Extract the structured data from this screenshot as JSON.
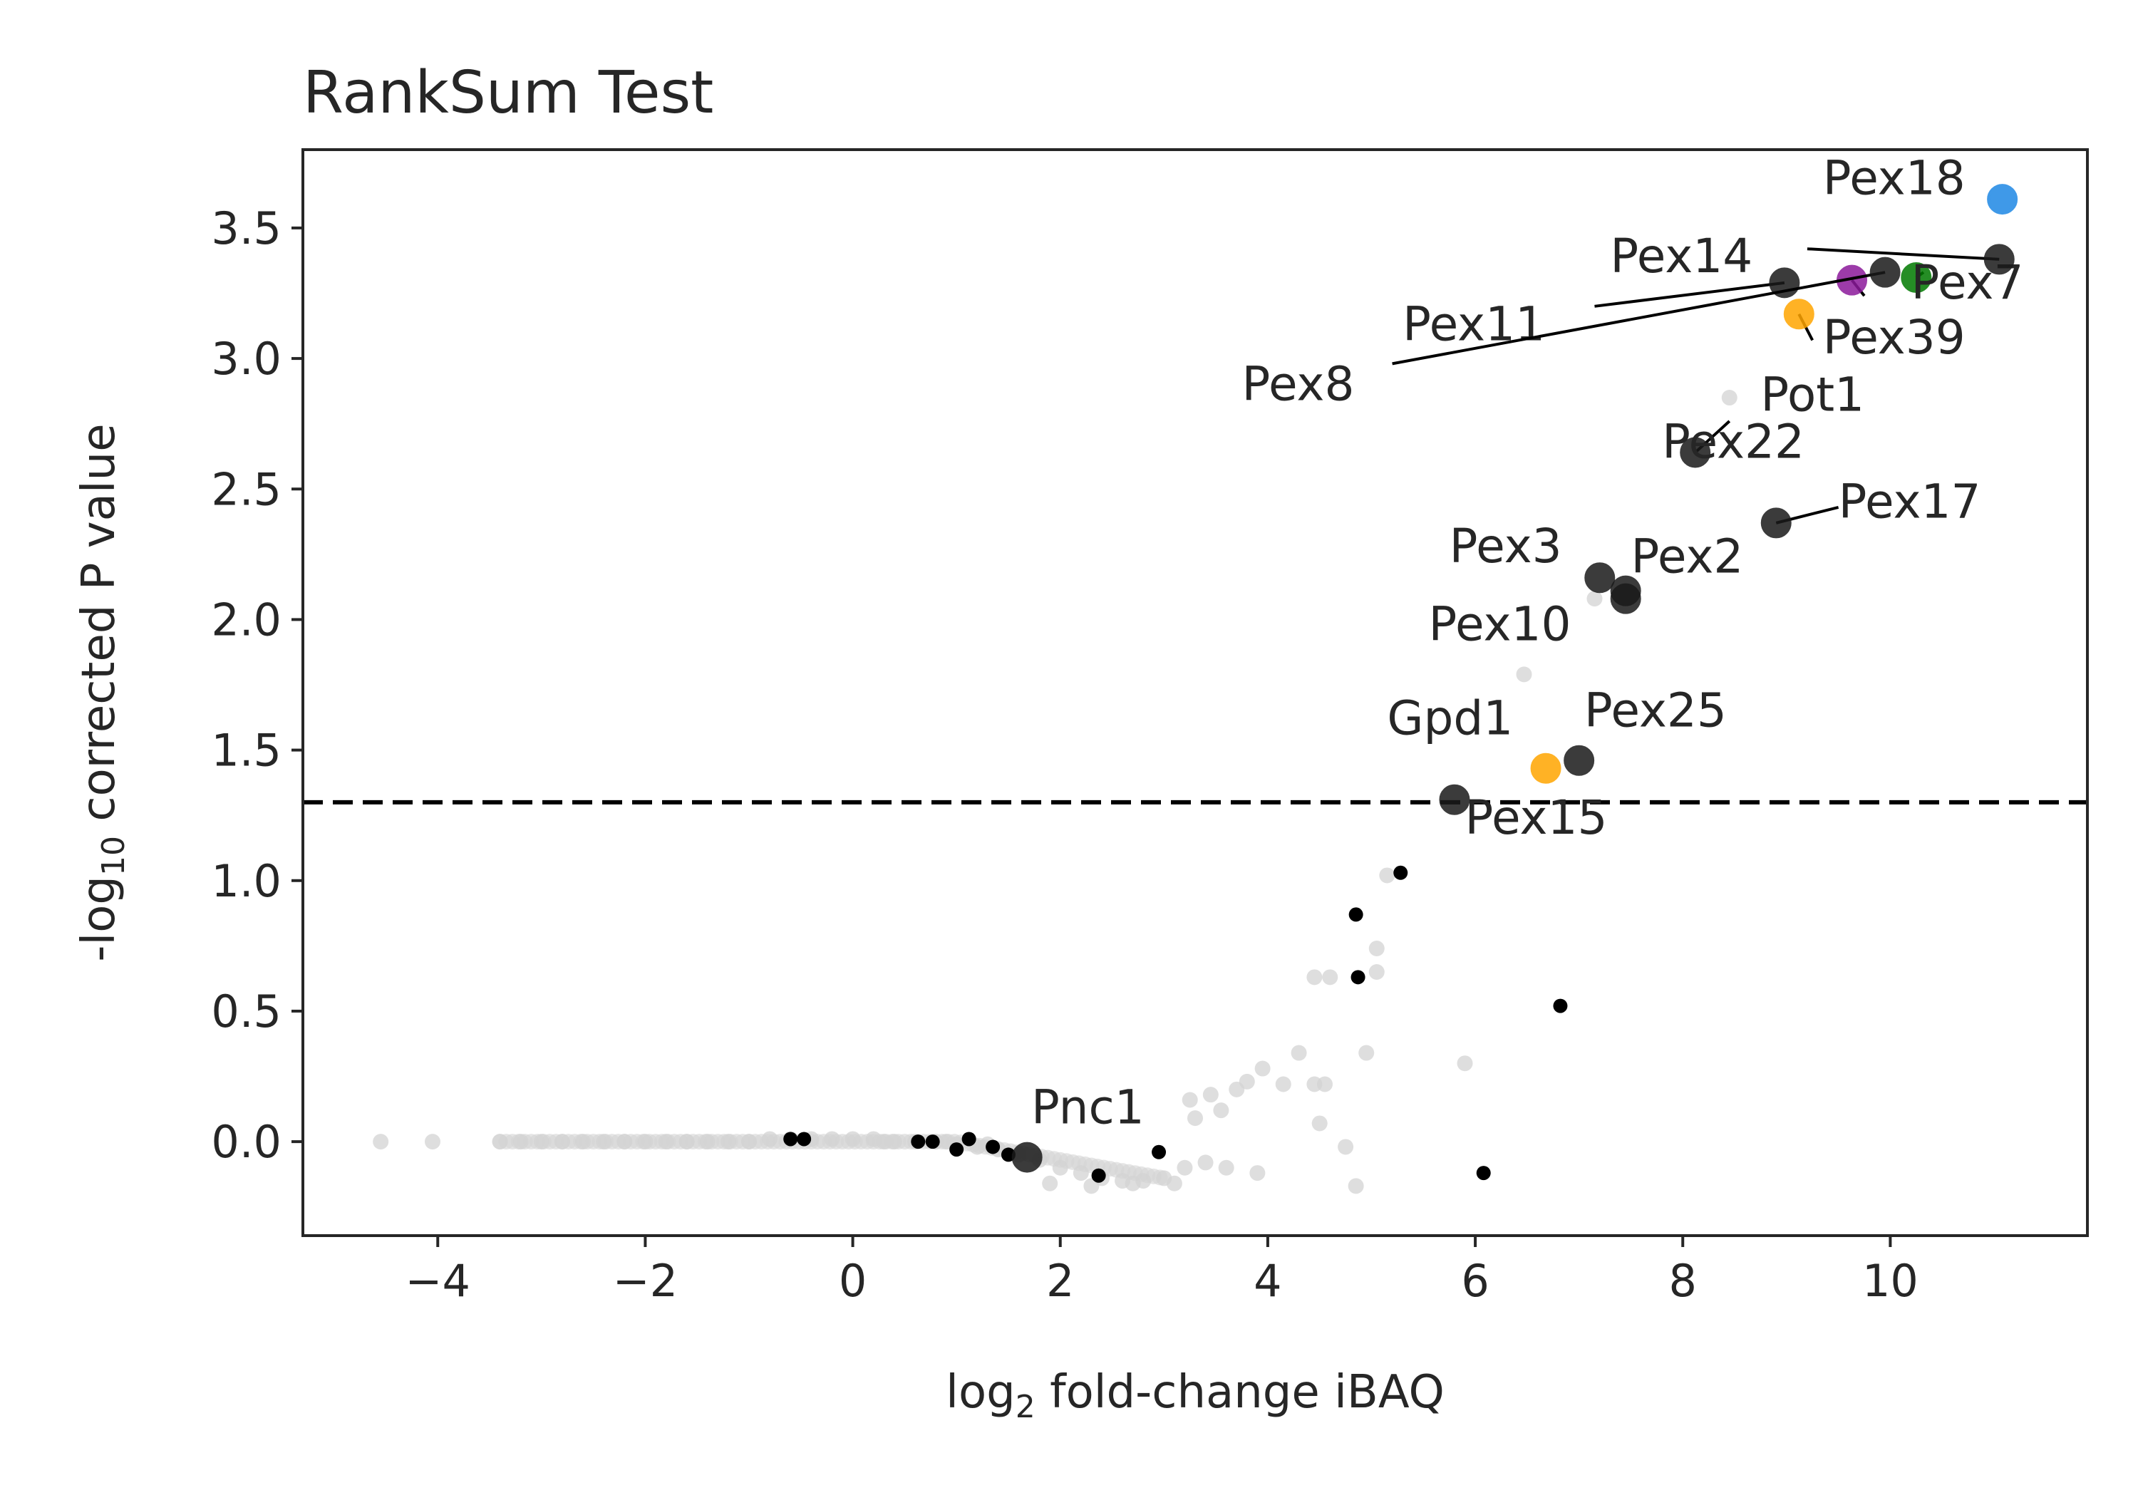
{
  "chart_data": {
    "type": "scatter",
    "title": "RankSum Test",
    "xlabel": {
      "prefix": "log",
      "subscript": "2",
      "suffix": " fold-change iBAQ"
    },
    "ylabel": {
      "prefix": "-log",
      "subscript": "10",
      "suffix": " corrected P value"
    },
    "xlim": [
      -5.3,
      11.9
    ],
    "ylim": [
      -0.36,
      3.8
    ],
    "x_ticks": [
      {
        "value": -4,
        "label": "−4"
      },
      {
        "value": -2,
        "label": "−2"
      },
      {
        "value": 0,
        "label": "0"
      },
      {
        "value": 2,
        "label": "2"
      },
      {
        "value": 4,
        "label": "4"
      },
      {
        "value": 6,
        "label": "6"
      },
      {
        "value": 8,
        "label": "8"
      },
      {
        "value": 10,
        "label": "10"
      }
    ],
    "y_ticks": [
      {
        "value": 0.0,
        "label": "0.0"
      },
      {
        "value": 0.5,
        "label": "0.5"
      },
      {
        "value": 1.0,
        "label": "1.0"
      },
      {
        "value": 1.5,
        "label": "1.5"
      },
      {
        "value": 2.0,
        "label": "2.0"
      },
      {
        "value": 2.5,
        "label": "2.5"
      },
      {
        "value": 3.0,
        "label": "3.0"
      },
      {
        "value": 3.5,
        "label": "3.5"
      }
    ],
    "grid": false,
    "threshold_line": {
      "y": 1.3,
      "style": "dashed",
      "color": "#000000"
    },
    "background_points": {
      "color": "#d3d3d3",
      "points": [
        [
          -4.55,
          0.0
        ],
        [
          -4.05,
          0.0
        ],
        [
          -3.4,
          0.0
        ],
        [
          -3.2,
          0.0
        ],
        [
          -3.0,
          0.0
        ],
        [
          -2.8,
          0.0
        ],
        [
          -2.6,
          0.0
        ],
        [
          -2.4,
          0.0
        ],
        [
          -2.2,
          0.0
        ],
        [
          -2.0,
          0.0
        ],
        [
          -1.8,
          0.0
        ],
        [
          -1.6,
          0.0
        ],
        [
          -1.4,
          0.0
        ],
        [
          -1.2,
          0.0
        ],
        [
          -1.0,
          0.0
        ],
        [
          -0.8,
          0.01
        ],
        [
          -0.6,
          0.01
        ],
        [
          -0.4,
          0.01
        ],
        [
          -0.2,
          0.01
        ],
        [
          0.0,
          0.01
        ],
        [
          0.2,
          0.01
        ],
        [
          0.4,
          0.0
        ],
        [
          0.6,
          0.0
        ],
        [
          0.8,
          0.0
        ],
        [
          1.0,
          -0.01
        ],
        [
          1.2,
          -0.02
        ],
        [
          1.4,
          -0.03
        ],
        [
          1.6,
          -0.05
        ],
        [
          1.8,
          -0.07
        ],
        [
          2.0,
          -0.1
        ],
        [
          2.2,
          -0.12
        ],
        [
          2.4,
          -0.14
        ],
        [
          2.6,
          -0.15
        ],
        [
          2.8,
          -0.15
        ],
        [
          3.0,
          -0.14
        ],
        [
          3.2,
          -0.1
        ],
        [
          3.4,
          -0.08
        ],
        [
          3.6,
          -0.1
        ],
        [
          3.9,
          -0.12
        ],
        [
          1.9,
          -0.16
        ],
        [
          2.3,
          -0.17
        ],
        [
          2.7,
          -0.16
        ],
        [
          3.1,
          -0.16
        ],
        [
          3.3,
          0.09
        ],
        [
          3.25,
          0.16
        ],
        [
          3.45,
          0.18
        ],
        [
          3.55,
          0.12
        ],
        [
          3.7,
          0.2
        ],
        [
          3.8,
          0.23
        ],
        [
          3.95,
          0.28
        ],
        [
          4.15,
          0.22
        ],
        [
          4.3,
          0.34
        ],
        [
          4.45,
          0.22
        ],
        [
          4.55,
          0.22
        ],
        [
          4.5,
          0.07
        ],
        [
          4.45,
          0.63
        ],
        [
          4.6,
          0.63
        ],
        [
          4.75,
          -0.02
        ],
        [
          4.85,
          -0.17
        ],
        [
          4.95,
          0.34
        ],
        [
          5.05,
          0.65
        ],
        [
          5.05,
          0.74
        ],
        [
          5.15,
          1.02
        ],
        [
          5.9,
          0.3
        ],
        [
          6.47,
          1.79
        ],
        [
          7.15,
          2.08
        ],
        [
          8.45,
          2.85
        ],
        [
          0.3,
          0.0
        ],
        [
          0.9,
          0.0
        ],
        [
          1.3,
          -0.01
        ]
      ]
    },
    "highlight_points": {
      "color": "#000000",
      "points": [
        [
          -0.6,
          0.01
        ],
        [
          -0.47,
          0.01
        ],
        [
          0.63,
          0.0
        ],
        [
          0.77,
          0.0
        ],
        [
          1.0,
          -0.03
        ],
        [
          1.12,
          0.01
        ],
        [
          1.35,
          -0.02
        ],
        [
          1.5,
          -0.05
        ],
        [
          2.37,
          -0.13
        ],
        [
          2.95,
          -0.04
        ],
        [
          4.85,
          0.87
        ],
        [
          4.87,
          0.63
        ],
        [
          5.28,
          1.03
        ],
        [
          6.08,
          -0.12
        ],
        [
          6.82,
          0.52
        ]
      ]
    },
    "labeled_points": [
      {
        "name": "Pnc1",
        "x": 1.68,
        "y": -0.06,
        "color": "#1a1a1a",
        "label_x": 1.72,
        "label_y": 0.07
      },
      {
        "name": "Pex15",
        "x": 5.8,
        "y": 1.31,
        "color": "#1a1a1a",
        "label_x": 5.9,
        "label_y": 1.18
      },
      {
        "name": "Gpd1",
        "x": 6.68,
        "y": 1.43,
        "color": "#ffa500",
        "label_x": 5.15,
        "label_y": 1.56
      },
      {
        "name": "Pex25",
        "x": 7.0,
        "y": 1.46,
        "color": "#1a1a1a",
        "label_x": 7.05,
        "label_y": 1.59
      },
      {
        "name": "Pex10",
        "x": 7.45,
        "y": 2.08,
        "color": "#1a1a1a",
        "label_x": 5.55,
        "label_y": 1.92
      },
      {
        "name": "Pex3",
        "x": 7.2,
        "y": 2.16,
        "color": "#1a1a1a",
        "label_x": 5.75,
        "label_y": 2.22
      },
      {
        "name": "Pex2",
        "x": 7.45,
        "y": 2.11,
        "color": "#1a1a1a",
        "label_x": 7.5,
        "label_y": 2.18
      },
      {
        "name": "Pex17",
        "x": 8.9,
        "y": 2.37,
        "color": "#1a1a1a",
        "label_x": 9.5,
        "label_y": 2.39,
        "leader": [
          9.5,
          2.43
        ]
      },
      {
        "name": "Pex22",
        "x": 8.12,
        "y": 2.64,
        "color": "#1a1a1a",
        "label_x": 7.8,
        "label_y": 2.62,
        "leader": [
          8.45,
          2.76
        ]
      },
      {
        "name": "Pot1",
        "x": 9.12,
        "y": 3.17,
        "color": "#ffa500",
        "label_x": 8.75,
        "label_y": 2.8,
        "leader": [
          9.25,
          3.07
        ]
      },
      {
        "name": "Pex39",
        "x": 9.63,
        "y": 3.3,
        "color": "#8b1a9b",
        "label_x": 9.35,
        "label_y": 3.02,
        "leader": [
          9.75,
          3.24
        ]
      },
      {
        "name": "Pex7",
        "x": 10.25,
        "y": 3.31,
        "color": "#007a00",
        "label_x": 10.2,
        "label_y": 3.23,
        "leader": [
          10.32,
          3.33
        ]
      },
      {
        "name": "Pex11",
        "x": 8.98,
        "y": 3.29,
        "color": "#1a1a1a",
        "label_x": 5.3,
        "label_y": 3.07,
        "leader": [
          7.15,
          3.2
        ]
      },
      {
        "name": "Pex8",
        "x": 9.95,
        "y": 3.33,
        "color": "#1a1a1a",
        "label_x": 3.75,
        "label_y": 2.84,
        "leader": [
          5.2,
          2.98
        ]
      },
      {
        "name": "Pex14",
        "x": 11.05,
        "y": 3.38,
        "color": "#1a1a1a",
        "label_x": 7.3,
        "label_y": 3.33,
        "leader": [
          9.2,
          3.42
        ]
      },
      {
        "name": "Pex18",
        "x": 11.08,
        "y": 3.61,
        "color": "#1e88e5",
        "label_x": 9.35,
        "label_y": 3.63
      }
    ]
  }
}
